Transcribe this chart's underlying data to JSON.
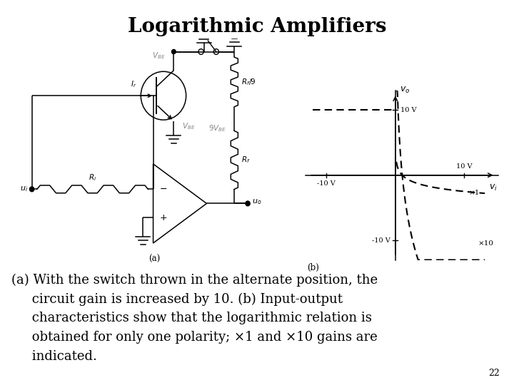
{
  "title": "Logarithmic Amplifiers",
  "title_fontsize": 20,
  "title_fontweight": "bold",
  "bg_color": "#ffffff",
  "slide_number": "22",
  "caption_line1": "(a) With the switch thrown in the alternate position, the",
  "caption_line2": "     circuit gain is increased by 10. (b) Input-output",
  "caption_line3": "     characteristics show that the logarithmic relation is",
  "caption_line4": "     obtained for only one polarity; ×1 and ×10 gains are",
  "caption_line5": "     indicated.",
  "caption_fontsize": 13.0
}
